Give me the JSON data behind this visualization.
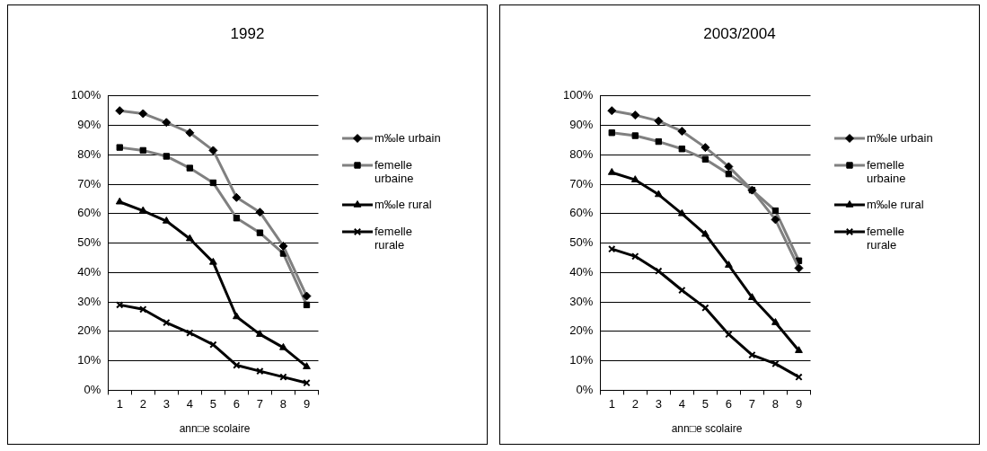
{
  "chart_data": [
    {
      "type": "line",
      "title": "1992",
      "xlabel": "ann□e scolaire",
      "categories": [
        "1",
        "2",
        "3",
        "4",
        "5",
        "6",
        "7",
        "8",
        "9"
      ],
      "series": [
        {
          "name": "m‰le urbain",
          "color": "#808080",
          "marker": "diamond",
          "values": [
            95,
            94,
            91,
            87.5,
            81.5,
            65.5,
            60.5,
            49,
            32
          ]
        },
        {
          "name": "femelle urbaine",
          "color": "#808080",
          "marker": "square",
          "values": [
            82.5,
            81.5,
            79.5,
            75.5,
            70.5,
            58.5,
            53.5,
            46.5,
            29
          ]
        },
        {
          "name": "m‰le rural",
          "color": "#000000",
          "marker": "triangle",
          "values": [
            64,
            61,
            57.5,
            51.5,
            43.5,
            25,
            19,
            14.5,
            8
          ]
        },
        {
          "name": "femelle rurale",
          "color": "#000000",
          "marker": "cross",
          "values": [
            29,
            27.5,
            23,
            19.5,
            15.5,
            8.5,
            6.5,
            4.5,
            2.5
          ]
        }
      ],
      "ylim": [
        0,
        100
      ],
      "yticks": [
        {
          "value": 0,
          "label": "0%"
        },
        {
          "value": 10,
          "label": "10%"
        },
        {
          "value": 20,
          "label": "20%"
        },
        {
          "value": 30,
          "label": "30%"
        },
        {
          "value": 40,
          "label": "40%"
        },
        {
          "value": 50,
          "label": "50%"
        },
        {
          "value": 60,
          "label": "60%"
        },
        {
          "value": 70,
          "label": "70%"
        },
        {
          "value": 80,
          "label": "80%"
        },
        {
          "value": 90,
          "label": "90%"
        },
        {
          "value": 100,
          "label": "100%"
        }
      ],
      "grid": "y",
      "legend": "right"
    },
    {
      "type": "line",
      "title": "2003/2004",
      "xlabel": "ann□e scolaire",
      "categories": [
        "1",
        "2",
        "3",
        "4",
        "5",
        "6",
        "7",
        "8",
        "9"
      ],
      "series": [
        {
          "name": "m‰le urbain",
          "color": "#808080",
          "marker": "diamond",
          "values": [
            95,
            93.5,
            91.5,
            88,
            82.5,
            76,
            68,
            58,
            41.5
          ]
        },
        {
          "name": "femelle urbaine",
          "color": "#808080",
          "marker": "square",
          "values": [
            87.5,
            86.5,
            84.5,
            82,
            78.5,
            73.5,
            68,
            61,
            44
          ]
        },
        {
          "name": "m‰le rural",
          "color": "#000000",
          "marker": "triangle",
          "values": [
            74,
            71.5,
            66.5,
            60,
            53,
            42.5,
            31.5,
            23,
            13.5
          ]
        },
        {
          "name": "femelle rurale",
          "color": "#000000",
          "marker": "cross",
          "values": [
            48,
            45.5,
            40.5,
            34,
            28,
            19,
            12,
            9,
            4.5
          ]
        }
      ],
      "ylim": [
        0,
        100
      ],
      "yticks": [
        {
          "value": 0,
          "label": "0%"
        },
        {
          "value": 10,
          "label": "10%"
        },
        {
          "value": 20,
          "label": "20%"
        },
        {
          "value": 30,
          "label": "30%"
        },
        {
          "value": 40,
          "label": "40%"
        },
        {
          "value": 50,
          "label": "50%"
        },
        {
          "value": 60,
          "label": "60%"
        },
        {
          "value": 70,
          "label": "70%"
        },
        {
          "value": 80,
          "label": "80%"
        },
        {
          "value": 90,
          "label": "90%"
        },
        {
          "value": 100,
          "label": "100%"
        }
      ],
      "grid": "y",
      "legend": "right"
    }
  ]
}
